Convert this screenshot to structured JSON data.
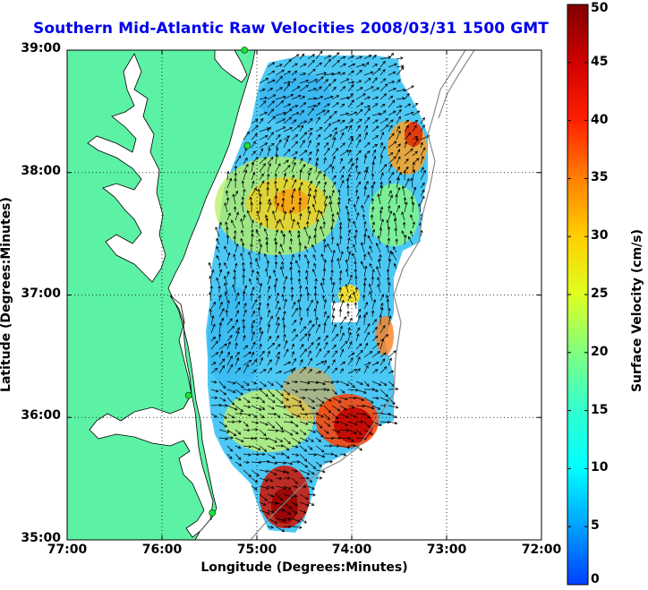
{
  "title": "Southern Mid-Atlantic Raw Velocities 2008/03/31 1500 GMT",
  "xlabel": "Longitude (Degrees:Minutes)",
  "ylabel": "Latitude (Degrees:Minutes)",
  "xticks": [
    "77:00",
    "76:00",
    "75:00",
    "74:00",
    "73:00",
    "72:00"
  ],
  "yticks": [
    "39:00",
    "38:00",
    "37:00",
    "36:00",
    "35:00"
  ],
  "colorbar": {
    "label": "Surface Velocity (cm/s)",
    "ticks": [
      "50",
      "45",
      "40",
      "35",
      "30",
      "25",
      "20",
      "15",
      "10",
      "5",
      "0"
    ],
    "range": [
      0,
      50
    ],
    "colors": [
      "#0040ff",
      "#00bfff",
      "#00ffff",
      "#40ffbf",
      "#80ff80",
      "#ffff00",
      "#ffbf00",
      "#ff8000",
      "#ff0000",
      "#bf0000",
      "#800000"
    ]
  },
  "map": {
    "land_color": "#5cf2a5",
    "xlim": [
      -77,
      -72
    ],
    "ylim": [
      35,
      39
    ],
    "stations": [
      {
        "lon": -75.13,
        "lat": 39.0
      },
      {
        "lon": -75.1,
        "lat": 38.22
      },
      {
        "lon": -75.72,
        "lat": 36.18
      },
      {
        "lon": -75.47,
        "lat": 35.22
      }
    ]
  }
}
